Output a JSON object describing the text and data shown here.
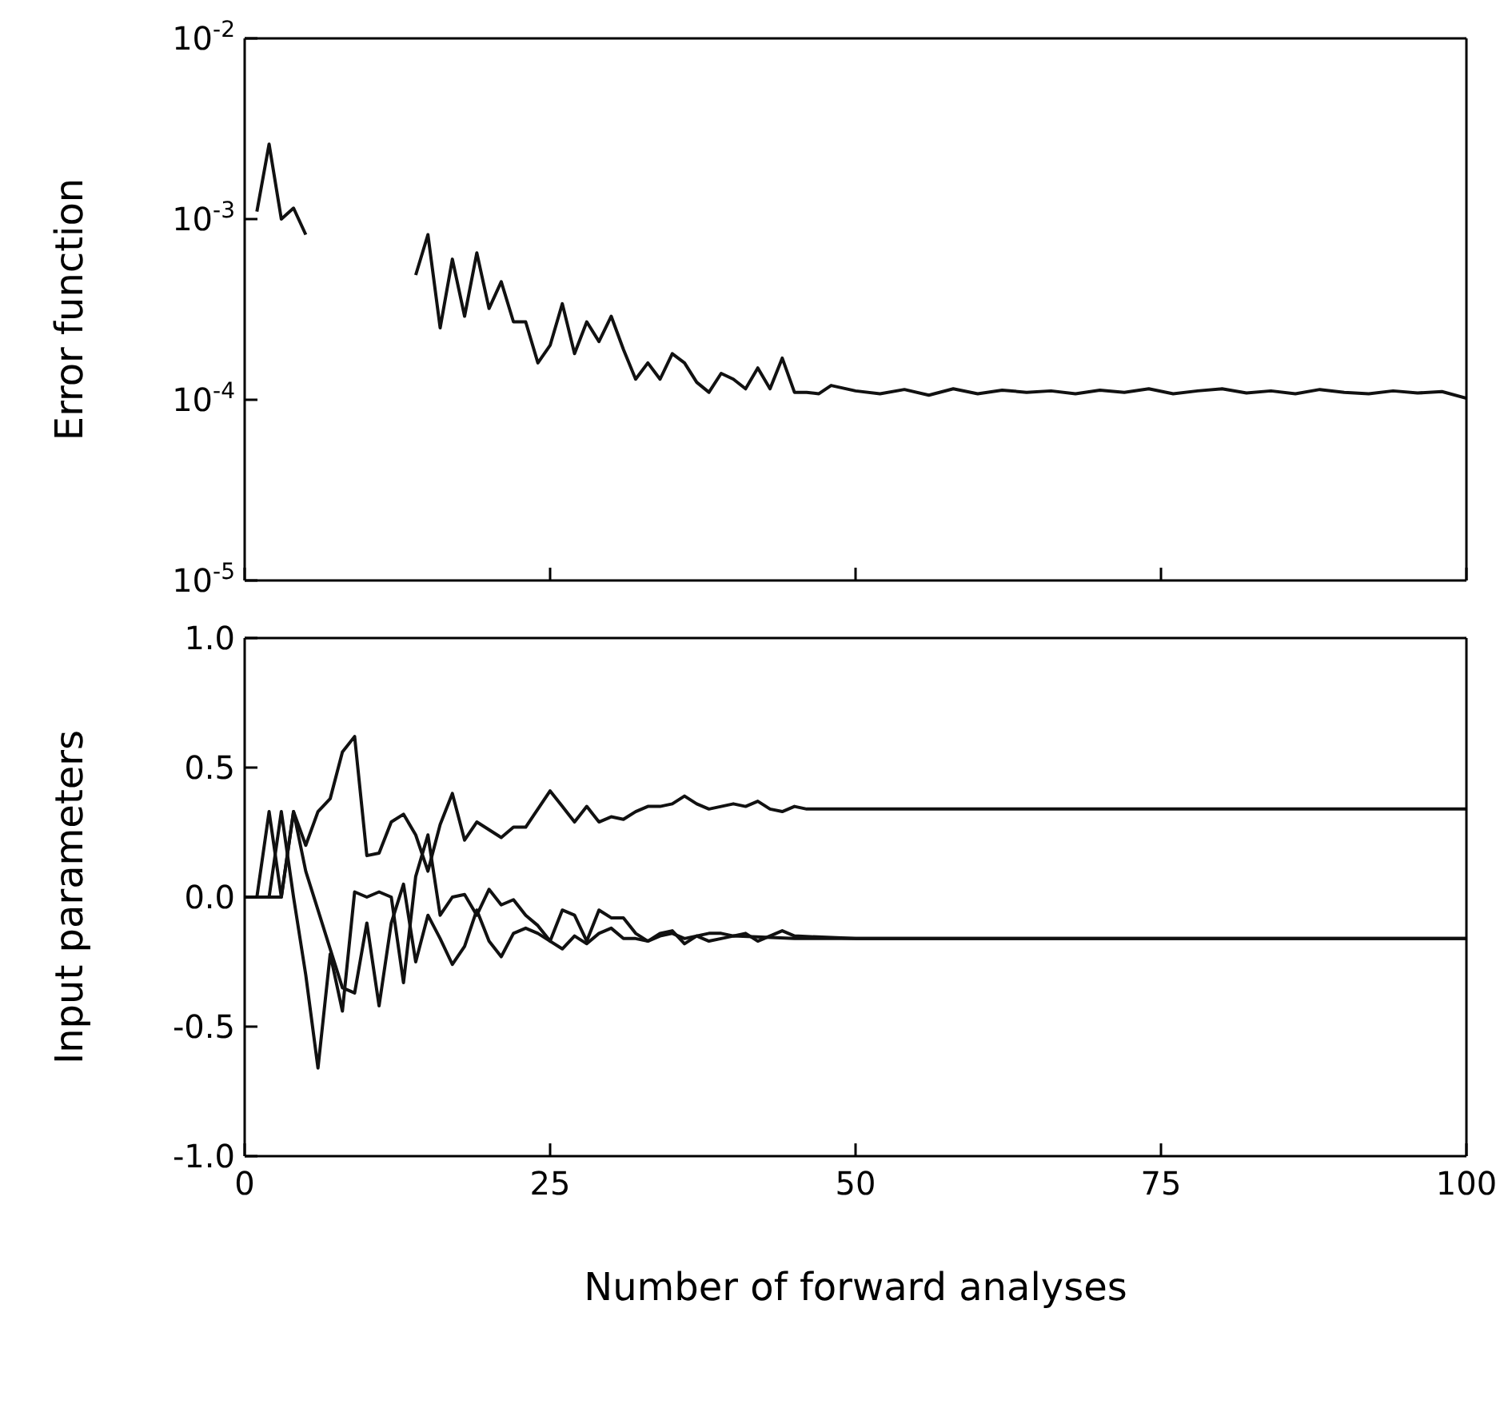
{
  "chart_data": [
    {
      "type": "line",
      "ylabel": "Error function",
      "log": "y",
      "xlim": [
        0,
        100
      ],
      "xticks": [
        0,
        25,
        50,
        75,
        100
      ],
      "ylim": [
        1e-05,
        0.01
      ],
      "yticks": [
        {
          "value": 0.01,
          "label": "10$^{-2}$"
        },
        {
          "value": 0.001,
          "label": "10$^{-3}$"
        },
        {
          "value": 0.0001,
          "label": "10$^{-4}$"
        },
        {
          "value": 1e-05,
          "label": "10$^{-5}$"
        }
      ],
      "tick_labels": "y",
      "marker": "none",
      "line_style": "solid",
      "series": [
        {
          "color": "#111111",
          "x": [
            1,
            2,
            3,
            4,
            5,
            6,
            14,
            15,
            16,
            17,
            18,
            19,
            20,
            21,
            22,
            23,
            24,
            25,
            26,
            27,
            28,
            29,
            30,
            31,
            32,
            33,
            34,
            35,
            36,
            37,
            38,
            39,
            40,
            41,
            42,
            43,
            44,
            45,
            46,
            47,
            48,
            50,
            52,
            54,
            56,
            58,
            60,
            62,
            64,
            66,
            68,
            70,
            72,
            74,
            76,
            78,
            80,
            82,
            84,
            86,
            88,
            90,
            92,
            94,
            96,
            98,
            100
          ],
          "values": [
            0.0011,
            0.0026,
            0.001,
            0.00115,
            0.00082,
            null,
            0.00049,
            0.00082,
            0.00025,
            0.0006,
            0.00029,
            0.00065,
            0.00032,
            0.00045,
            0.00027,
            0.00027,
            0.00016,
            0.0002,
            0.00034,
            0.00018,
            0.00027,
            0.00021,
            0.00029,
            0.00019,
            0.00013,
            0.00016,
            0.00013,
            0.00018,
            0.00016,
            0.000125,
            0.00011,
            0.00014,
            0.00013,
            0.000115,
            0.00015,
            0.000115,
            0.00017,
            0.00011,
            0.00011,
            0.000108,
            0.00012,
            0.000112,
            0.000108,
            0.000114,
            0.000106,
            0.000115,
            0.000108,
            0.000113,
            0.00011,
            0.000112,
            0.000108,
            0.000113,
            0.00011,
            0.000115,
            0.000108,
            0.000112,
            0.000115,
            0.000109,
            0.000112,
            0.000108,
            0.000114,
            0.00011,
            0.000108,
            0.000112,
            0.000109,
            0.000111,
            0.000102
          ]
        }
      ]
    },
    {
      "type": "line",
      "xlabel": "Number of forward analyses",
      "ylabel": "Input parameters",
      "xlim": [
        0,
        100
      ],
      "xticks": [
        0,
        25,
        50,
        75,
        100
      ],
      "ylim": [
        -1,
        1
      ],
      "yticks": [
        {
          "value": 1,
          "label": "1.0"
        },
        {
          "value": 0.5,
          "label": "0.5"
        },
        {
          "value": 0,
          "label": "0.0"
        },
        {
          "value": -0.5,
          "label": "-0.5"
        },
        {
          "value": -1,
          "label": "-1.0"
        }
      ],
      "marker": "none",
      "line_style": "solid",
      "series": [
        {
          "color": "#111111",
          "x": [
            0,
            1,
            2,
            3,
            4,
            5,
            6,
            7,
            8,
            9,
            10,
            11,
            12,
            13,
            14,
            15,
            16,
            17,
            18,
            19,
            20,
            21,
            22,
            23,
            24,
            25,
            26,
            27,
            28,
            29,
            30,
            31,
            32,
            33,
            34,
            35,
            36,
            37,
            38,
            39,
            40,
            41,
            42,
            43,
            44,
            45,
            46,
            50,
            60,
            70,
            80,
            90,
            100
          ],
          "values": [
            0,
            0,
            0.33,
            0,
            0.33,
            0.2,
            0.33,
            0.38,
            0.56,
            0.62,
            0.16,
            0.17,
            0.29,
            0.32,
            0.24,
            0.1,
            0.28,
            0.4,
            0.22,
            0.29,
            0.26,
            0.23,
            0.27,
            0.27,
            0.34,
            0.41,
            0.35,
            0.29,
            0.35,
            0.29,
            0.31,
            0.3,
            0.33,
            0.35,
            0.35,
            0.36,
            0.39,
            0.36,
            0.34,
            0.35,
            0.36,
            0.35,
            0.37,
            0.34,
            0.33,
            0.35,
            0.34,
            0.34,
            0.34,
            0.34,
            0.34,
            0.34,
            0.34
          ]
        },
        {
          "color": "#111111",
          "x": [
            0,
            1,
            2,
            3,
            4,
            5,
            6,
            7,
            8,
            9,
            10,
            11,
            12,
            13,
            14,
            15,
            16,
            17,
            18,
            19,
            20,
            21,
            22,
            23,
            24,
            25,
            26,
            27,
            28,
            29,
            30,
            31,
            32,
            33,
            34,
            35,
            36,
            37,
            38,
            39,
            40,
            45,
            50,
            60,
            70,
            80,
            90,
            100
          ],
          "values": [
            0,
            0,
            0,
            0.33,
            0,
            -0.3,
            -0.66,
            -0.22,
            -0.44,
            0.02,
            0,
            0.02,
            0,
            -0.33,
            0.08,
            0.24,
            -0.07,
            0,
            0.01,
            -0.07,
            0.03,
            -0.03,
            -0.01,
            -0.07,
            -0.11,
            -0.17,
            -0.05,
            -0.07,
            -0.17,
            -0.05,
            -0.08,
            -0.08,
            -0.14,
            -0.17,
            -0.15,
            -0.14,
            -0.16,
            -0.15,
            -0.17,
            -0.16,
            -0.15,
            -0.16,
            -0.16,
            -0.16,
            -0.16,
            -0.16,
            -0.16,
            -0.16
          ]
        },
        {
          "color": "#111111",
          "x": [
            0,
            1,
            2,
            3,
            4,
            5,
            6,
            7,
            8,
            9,
            10,
            11,
            12,
            13,
            14,
            15,
            16,
            17,
            18,
            19,
            20,
            21,
            22,
            23,
            24,
            25,
            26,
            27,
            28,
            29,
            30,
            31,
            32,
            33,
            34,
            35,
            36,
            37,
            38,
            39,
            40,
            41,
            42,
            43,
            44,
            45,
            50,
            60,
            70,
            80,
            90,
            100
          ],
          "values": [
            0,
            0,
            0,
            0,
            0.33,
            0.1,
            -0.05,
            -0.2,
            -0.35,
            -0.37,
            -0.1,
            -0.42,
            -0.1,
            0.05,
            -0.25,
            -0.07,
            -0.16,
            -0.26,
            -0.19,
            -0.05,
            -0.17,
            -0.23,
            -0.14,
            -0.12,
            -0.14,
            -0.17,
            -0.2,
            -0.15,
            -0.18,
            -0.14,
            -0.12,
            -0.16,
            -0.16,
            -0.17,
            -0.14,
            -0.13,
            -0.18,
            -0.15,
            -0.14,
            -0.14,
            -0.15,
            -0.14,
            -0.17,
            -0.15,
            -0.13,
            -0.15,
            -0.16,
            -0.16,
            -0.16,
            -0.16,
            -0.16,
            -0.16
          ]
        }
      ]
    }
  ]
}
